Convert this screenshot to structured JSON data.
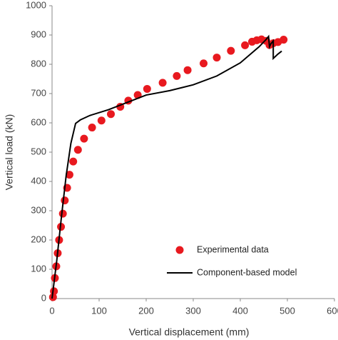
{
  "chart_data": {
    "type": "scatter",
    "xlabel": "Vertical displacement (mm)",
    "ylabel": "Vertical load (kN)",
    "xlim": [
      0,
      600
    ],
    "xticks": [
      0,
      100,
      200,
      300,
      400,
      500,
      600
    ],
    "ylim": [
      0,
      1000
    ],
    "yticks": [
      0,
      100,
      200,
      300,
      400,
      500,
      600,
      700,
      800,
      900,
      1000
    ],
    "legend": "lower right",
    "series": [
      {
        "name": "Experimental data",
        "color": "#e8191f",
        "mode": "markers",
        "x": [
          2,
          4,
          6,
          9,
          12,
          15,
          19,
          23,
          27,
          32,
          37,
          45,
          55,
          68,
          85,
          105,
          125,
          145,
          162,
          182,
          202,
          235,
          265,
          288,
          322,
          350,
          380,
          410,
          425,
          435,
          445,
          455,
          462,
          470,
          480,
          492
        ],
        "values": [
          5,
          25,
          70,
          110,
          155,
          200,
          245,
          290,
          335,
          378,
          423,
          468,
          508,
          546,
          584,
          608,
          630,
          655,
          676,
          695,
          716,
          737,
          760,
          780,
          803,
          823,
          846,
          865,
          877,
          882,
          885,
          880,
          866,
          872,
          876,
          884
        ]
      },
      {
        "name": "Component-based model",
        "color": "#000000",
        "mode": "line",
        "x": [
          0,
          10,
          20,
          30,
          40,
          50,
          60,
          80,
          120,
          160,
          200,
          250,
          300,
          350,
          400,
          440,
          455,
          460,
          462,
          465,
          470,
          470,
          480,
          488
        ],
        "values": [
          0,
          130,
          280,
          420,
          530,
          598,
          610,
          625,
          645,
          670,
          695,
          710,
          730,
          760,
          805,
          860,
          885,
          895,
          860,
          870,
          880,
          820,
          835,
          845
        ]
      }
    ]
  }
}
